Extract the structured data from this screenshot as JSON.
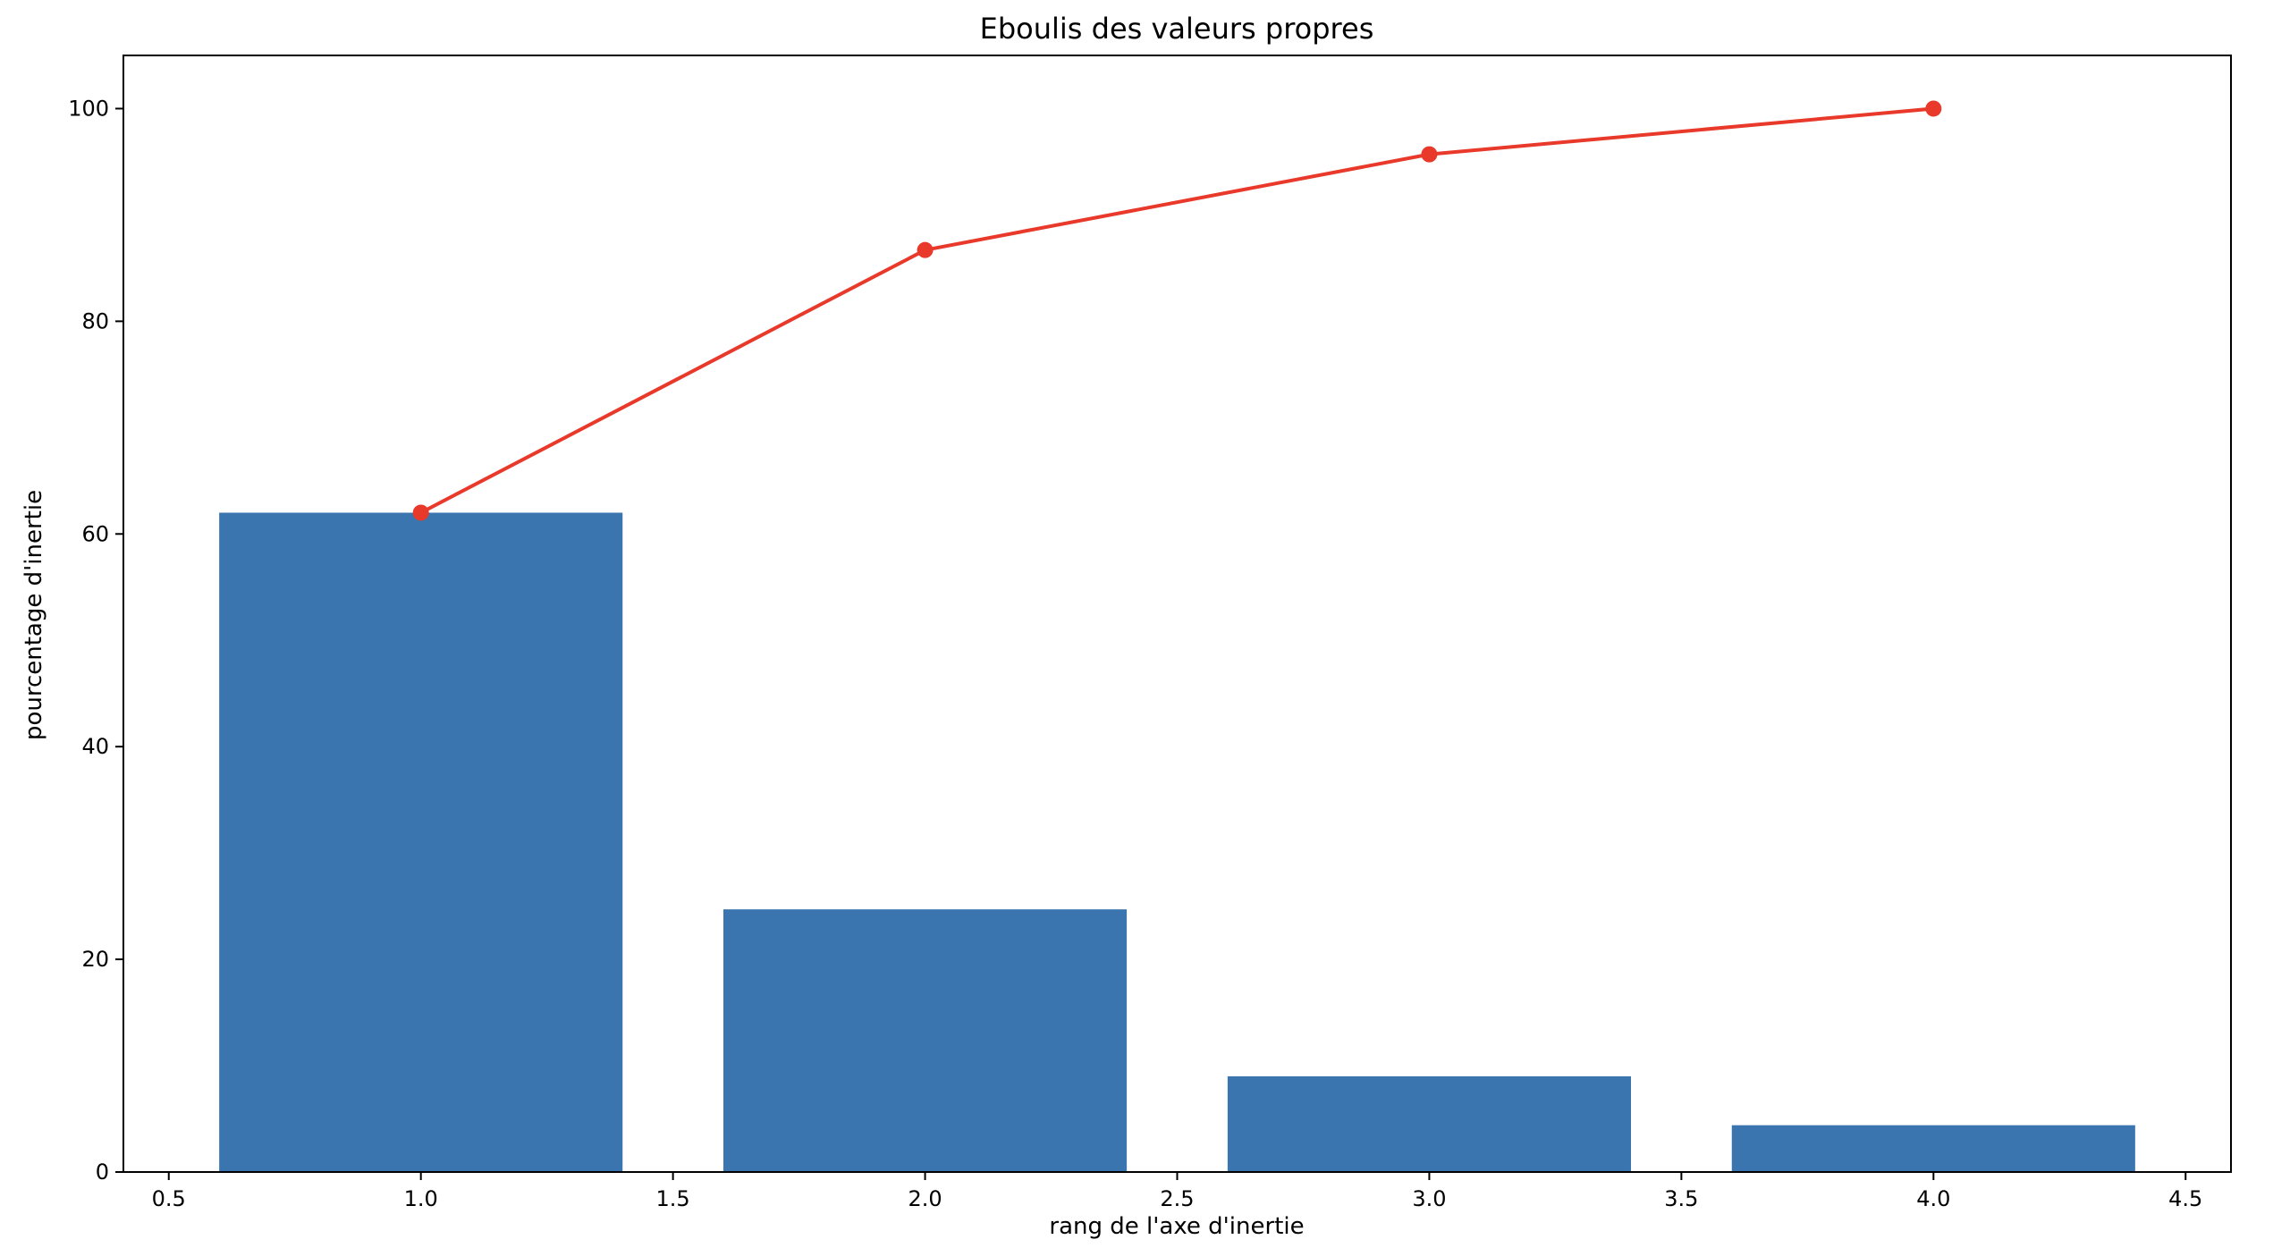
{
  "chart_data": {
    "type": "bar",
    "title": "Eboulis des valeurs propres",
    "xlabel": "rang de l'axe d'inertie",
    "ylabel": "pourcentage d'inertie",
    "xlim": [
      0.41,
      4.59
    ],
    "ylim": [
      0,
      105
    ],
    "x_ticks": [
      0.5,
      1.0,
      1.5,
      2.0,
      2.5,
      3.0,
      3.5,
      4.0,
      4.5
    ],
    "x_tick_labels": [
      "0.5",
      "1.0",
      "1.5",
      "2.0",
      "2.5",
      "3.0",
      "3.5",
      "4.0",
      "4.5"
    ],
    "y_ticks": [
      0,
      20,
      40,
      60,
      80,
      100
    ],
    "y_tick_labels": [
      "0",
      "20",
      "40",
      "60",
      "80",
      "100"
    ],
    "grid": false,
    "bar_width": 0.8,
    "series": [
      {
        "kind": "bar",
        "color": "#3a75af",
        "x": [
          1,
          2,
          3,
          4
        ],
        "values": [
          62.0,
          24.7,
          9.0,
          4.4
        ]
      },
      {
        "kind": "line",
        "marker": "circle",
        "color": "#e8392a",
        "x": [
          1,
          2,
          3,
          4
        ],
        "values": [
          62.0,
          86.7,
          95.7,
          100.0
        ]
      }
    ]
  }
}
